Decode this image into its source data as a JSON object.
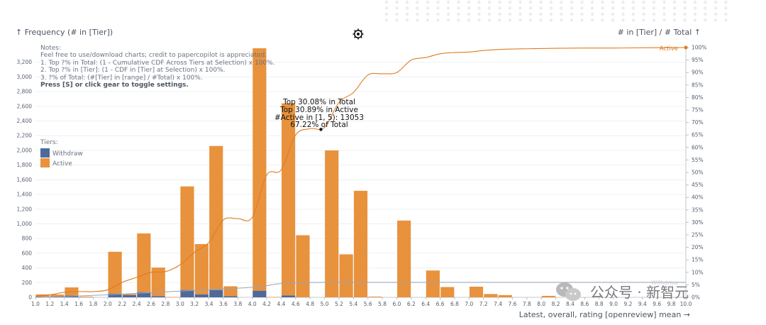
{
  "header": {
    "left_title": "↑ Frequency (# in [Tier])",
    "right_title": "# in [Tier] / # Total ↑",
    "settings_icon": "gear-icon"
  },
  "notes": {
    "title": "Notes:",
    "line1": "Feel free to use/download charts; credit to papercopilot is appreciated.",
    "line2": "1. Top ?% in Total: (1 - Cumulative CDF Across Tiers at Selection) x 100%.",
    "line3": "2. Top ?% in [Tier]: (1 - CDF in [Tier] at Selection) x 100%.",
    "line4": "3. ?% of Total: (#[Tier] in [range] / #Total) x 100%.",
    "line5": "Press [S] or click gear to toggle settings."
  },
  "legend": {
    "title": "Tiers:",
    "items": [
      {
        "label": "Withdraw",
        "color": "#4e6a9a"
      },
      {
        "label": "Active",
        "color": "#e8923d"
      }
    ]
  },
  "tooltip": {
    "line1": "Top 30.08% in Total",
    "line2": "Top 30.89% in Active",
    "line3": "#Active in [1, 5): 13053",
    "line4": "67.22% of Total"
  },
  "curve_labels": {
    "active": "Active",
    "withdraw": "Withdraw"
  },
  "watermark": "公众号 · 新智元",
  "chart_data": {
    "type": "bar",
    "stacked": true,
    "xlabel": "Latest, overall, rating [openreview] mean →",
    "x_ticks": [
      "1.0",
      "1.2",
      "1.4",
      "1.6",
      "1.8",
      "2.0",
      "2.2",
      "2.4",
      "2.6",
      "2.8",
      "3.0",
      "3.2",
      "3.4",
      "3.6",
      "3.8",
      "4.0",
      "4.2",
      "4.4",
      "4.6",
      "4.8",
      "5.0",
      "5.2",
      "5.4",
      "5.6",
      "5.8",
      "6.0",
      "6.2",
      "6.4",
      "6.6",
      "6.8",
      "7.0",
      "7.2",
      "7.4",
      "7.6",
      "7.8",
      "8.0",
      "8.2",
      "8.4",
      "8.6",
      "8.8",
      "9.0",
      "9.2",
      "9.4",
      "9.6",
      "9.8",
      "10.0"
    ],
    "xlim": [
      1.0,
      10.0
    ],
    "bin_width": 0.2,
    "bin_starts": [
      1.0,
      1.2,
      1.4,
      1.6,
      1.8,
      2.0,
      2.2,
      2.4,
      2.6,
      2.8,
      3.0,
      3.2,
      3.4,
      3.6,
      3.8,
      4.0,
      4.2,
      4.4,
      4.6,
      4.8,
      5.0,
      5.2,
      5.4,
      5.6,
      5.8,
      6.0,
      6.2,
      6.4,
      6.6,
      6.8,
      7.0,
      7.2,
      7.4,
      7.6,
      7.8,
      8.0,
      8.2,
      8.4,
      8.6,
      8.8,
      9.0,
      9.2,
      9.4,
      9.6,
      9.8
    ],
    "ylim_left": [
      0,
      3400
    ],
    "yticks_left": [
      0,
      200,
      400,
      600,
      800,
      "1,000",
      "1,200",
      "1,400",
      "1,600",
      "1,800",
      "2,000",
      "2,200",
      "2,400",
      "2,600",
      "2,800",
      "3,000",
      "3,200"
    ],
    "ylim_right": [
      0,
      100
    ],
    "yticks_right": [
      "0%",
      "5%",
      "10%",
      "15%",
      "20%",
      "25%",
      "30%",
      "35%",
      "40%",
      "45%",
      "50%",
      "55%",
      "60%",
      "65%",
      "70%",
      "75%",
      "80%",
      "85%",
      "90%",
      "95%",
      "100%"
    ],
    "series": [
      {
        "name": "Withdraw",
        "color": "#4e6a9a",
        "values": [
          10,
          8,
          25,
          0,
          0,
          50,
          30,
          70,
          15,
          0,
          100,
          40,
          100,
          15,
          0,
          90,
          0,
          25,
          0,
          0,
          0,
          0,
          0,
          0,
          0,
          0,
          0,
          0,
          0,
          0,
          0,
          0,
          0,
          0,
          0,
          0,
          0,
          0,
          0,
          0,
          0,
          0,
          0,
          0,
          0
        ]
      },
      {
        "name": "Active",
        "color": "#e8923d",
        "values": [
          30,
          30,
          110,
          10,
          0,
          570,
          15,
          800,
          390,
          5,
          1410,
          685,
          1960,
          135,
          0,
          3300,
          5,
          2615,
          845,
          0,
          2000,
          585,
          1450,
          10,
          0,
          1045,
          0,
          365,
          140,
          0,
          145,
          45,
          30,
          0,
          0,
          20,
          0,
          0,
          0,
          0,
          0,
          0,
          0,
          0,
          0
        ]
      }
    ],
    "cumulative_active_pct": [
      [
        1.0,
        0.5
      ],
      [
        1.2,
        1
      ],
      [
        1.4,
        2
      ],
      [
        1.6,
        2.3
      ],
      [
        1.8,
        2.3
      ],
      [
        2.0,
        3
      ],
      [
        2.2,
        6
      ],
      [
        2.4,
        8
      ],
      [
        2.6,
        10
      ],
      [
        2.8,
        10.3
      ],
      [
        3.0,
        13
      ],
      [
        3.2,
        18
      ],
      [
        3.4,
        22
      ],
      [
        3.6,
        31
      ],
      [
        3.8,
        31.5
      ],
      [
        4.0,
        32
      ],
      [
        4.2,
        49
      ],
      [
        4.4,
        51
      ],
      [
        4.6,
        65
      ],
      [
        4.8,
        67.5
      ],
      [
        5.0,
        68
      ],
      [
        5.2,
        78
      ],
      [
        5.4,
        82
      ],
      [
        5.6,
        89
      ],
      [
        5.8,
        89.5
      ],
      [
        6.0,
        90
      ],
      [
        6.2,
        95
      ],
      [
        6.4,
        96
      ],
      [
        6.6,
        97.5
      ],
      [
        6.8,
        98
      ],
      [
        7.0,
        98.2
      ],
      [
        7.2,
        98.8
      ],
      [
        7.4,
        99.2
      ],
      [
        7.6,
        99.4
      ],
      [
        7.8,
        99.5
      ],
      [
        8.0,
        99.6
      ],
      [
        8.2,
        99.7
      ],
      [
        8.6,
        99.8
      ],
      [
        9.0,
        99.8
      ],
      [
        9.4,
        99.9
      ],
      [
        10.0,
        100
      ]
    ],
    "cumulative_withdraw_pct": [
      [
        1.0,
        0
      ],
      [
        2.0,
        1
      ],
      [
        3.0,
        2.5
      ],
      [
        4.0,
        4
      ],
      [
        4.4,
        5.5
      ],
      [
        5.0,
        6
      ],
      [
        6.0,
        6
      ],
      [
        8.0,
        6
      ],
      [
        10.0,
        6
      ]
    ],
    "tooltip_point": {
      "x": 4.95,
      "y_pct": 67.22
    }
  }
}
